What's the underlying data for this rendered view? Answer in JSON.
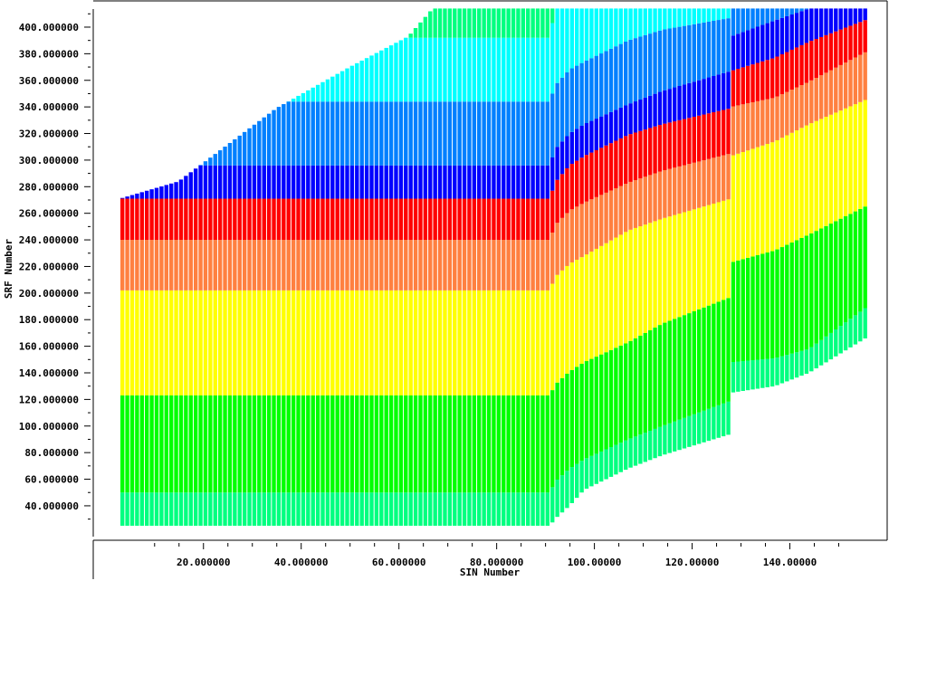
{
  "chart_data": {
    "type": "area",
    "xlabel": "SIN Number",
    "ylabel": "SRF Number",
    "xlim": [
      0,
      157
    ],
    "ylim": [
      16,
      414
    ],
    "x_ticks": [
      20,
      40,
      60,
      80,
      100,
      120,
      140
    ],
    "x_tick_labels": [
      "20.000000",
      "40.000000",
      "60.000000",
      "80.000000",
      "100.00000",
      "120.00000",
      "140.00000"
    ],
    "y_ticks": [
      40,
      60,
      80,
      100,
      120,
      140,
      160,
      180,
      200,
      220,
      240,
      260,
      280,
      300,
      320,
      340,
      360,
      380,
      400
    ],
    "y_tick_labels": [
      "40.000000",
      "60.000000",
      "80.000000",
      "100.000000",
      "120.000000",
      "140.000000",
      "160.000000",
      "180.000000",
      "200.000000",
      "220.000000",
      "240.000000",
      "260.000000",
      "280.000000",
      "300.000000",
      "320.000000",
      "340.000000",
      "360.000000",
      "380.000000",
      "400.000000"
    ],
    "x_minor_step": 5,
    "y_minor_step": 10,
    "column_start": 3,
    "column_end": 156,
    "column_width": 1,
    "colors": [
      "#00ff80",
      "#00ff00",
      "#ffff00",
      "#ff8040",
      "#ff0000",
      "#0000ff",
      "#0080ff",
      "#00ffff",
      "#00ff80"
    ],
    "band_boundaries_x": [
      3,
      91,
      92,
      95,
      98,
      107,
      114,
      128,
      128.01,
      137,
      144,
      156
    ],
    "band_boundaries": [
      [
        25,
        50,
        123,
        202,
        240,
        271,
        296,
        344,
        392,
        414
      ],
      [
        25,
        50,
        123,
        202,
        240,
        271,
        296,
        344,
        392,
        414
      ],
      [
        30,
        58,
        131,
        212,
        251,
        283,
        308,
        356,
        414,
        414
      ],
      [
        40,
        68,
        141,
        222,
        262,
        296,
        320,
        368,
        414,
        414
      ],
      [
        52,
        75,
        148,
        228,
        268,
        303,
        327,
        374,
        414,
        414
      ],
      [
        68,
        90,
        163,
        247,
        283,
        319,
        342,
        390,
        414,
        414
      ],
      [
        78,
        100,
        177,
        256,
        292,
        327,
        352,
        398,
        414,
        414
      ],
      [
        94,
        119,
        197,
        271,
        305,
        339,
        367,
        407,
        414,
        414
      ],
      [
        125,
        148,
        223,
        303,
        340,
        367,
        393,
        414,
        414,
        414
      ],
      [
        130,
        151,
        232,
        314,
        347,
        377,
        405,
        414,
        414,
        414
      ],
      [
        140,
        158,
        244,
        327,
        359,
        389,
        414,
        414,
        414,
        414
      ],
      [
        167,
        190,
        266,
        346,
        382,
        406,
        414,
        414,
        414,
        414
      ]
    ],
    "top_edge_x": [
      3,
      15,
      35,
      50,
      62,
      67,
      68,
      156
    ],
    "top_edge_y": [
      271,
      284,
      339,
      370,
      393,
      414,
      414,
      414
    ],
    "grid": false,
    "legend": "none"
  }
}
